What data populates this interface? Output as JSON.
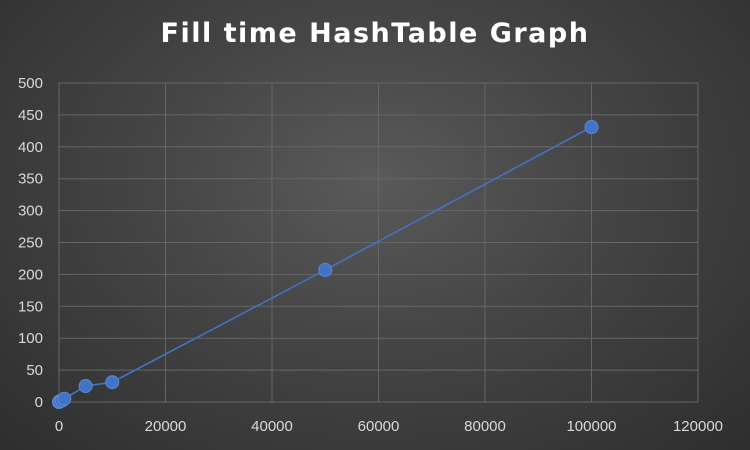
{
  "chart_data": {
    "type": "scatter",
    "title": "Fill time HashTable Graph",
    "xlabel": "",
    "ylabel": "",
    "xlim": [
      0,
      120000
    ],
    "ylim": [
      0,
      500
    ],
    "x_ticks": [
      0,
      20000,
      40000,
      60000,
      80000,
      100000,
      120000
    ],
    "y_ticks": [
      0,
      50,
      100,
      150,
      200,
      250,
      300,
      350,
      400,
      450,
      500
    ],
    "grid": true,
    "legend": "none",
    "series": [
      {
        "x": [
          0,
          100,
          500,
          1000,
          5000,
          10000,
          50000,
          100000
        ],
        "y": [
          0,
          1,
          2,
          5,
          25,
          31,
          207,
          431
        ],
        "lines": true,
        "markers": true
      }
    ],
    "colors": {
      "series": "#4472c4",
      "grid": "#666666",
      "tick_text": "#d9d9d9",
      "title": "#ffffff"
    }
  }
}
